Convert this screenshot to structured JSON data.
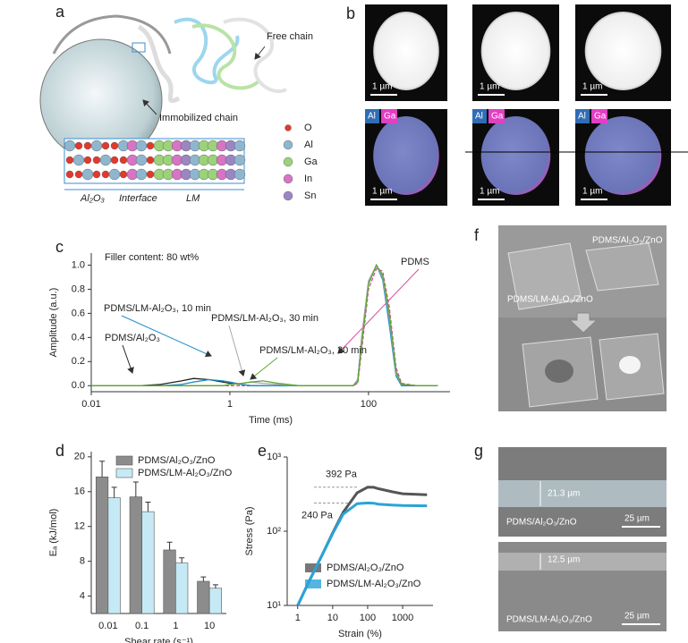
{
  "panel_labels": [
    "a",
    "b",
    "c",
    "d",
    "e",
    "f",
    "g"
  ],
  "panel_a": {
    "free_chain": "Free chain",
    "immobilized_chain": "Immobilized chain",
    "elements": [
      "O",
      "Al",
      "Ga",
      "In",
      "Sn"
    ],
    "regions": [
      "Al₂O₃",
      "Interface",
      "LM"
    ]
  },
  "panel_b": {
    "scale_bar": "1 µm",
    "tags": [
      "Al",
      "Ga"
    ]
  },
  "panel_f": {
    "labels": [
      "PDMS/Al₂O₃/ZnO",
      "PDMS/LM-Al₂O₃/ZnO"
    ]
  },
  "panel_g": {
    "thicknesses": [
      "21.3 µm",
      "12.5 µm"
    ],
    "samples": [
      "PDMS/Al₂O₃/ZnO",
      "PDMS/LM-Al₂O₃/ZnO"
    ],
    "scale_bar": "25 µm"
  },
  "chart_data": [
    {
      "type": "line",
      "annotation": "Filler content: 80 wt%",
      "xlabel": "Time (ms)",
      "ylabel": "Amplitude (a.u.)",
      "xscale": "log",
      "xlim": [
        0.01,
        1500
      ],
      "ylim": [
        -0.05,
        1.1
      ],
      "xticks": [
        0.01,
        1,
        100
      ],
      "yticks": [
        {
          "value": 0,
          "label": "0.0"
        },
        {
          "value": 0.2,
          "label": "0.2"
        },
        {
          "value": 0.4,
          "label": "0.4"
        },
        {
          "value": 0.6,
          "label": "0.6"
        },
        {
          "value": 0.8,
          "label": "0.8"
        },
        {
          "value": 1,
          "label": "1.0"
        }
      ],
      "x": [
        0.01,
        0.05,
        0.1,
        0.2,
        0.3,
        0.5,
        0.8,
        1,
        1.5,
        2,
        3,
        5,
        10,
        30,
        60,
        70,
        80,
        100,
        130,
        160,
        200,
        250,
        300,
        500,
        1000
      ],
      "series": [
        {
          "name": "PDMS",
          "color": "#d4509e",
          "linestyle": "dashed",
          "values": [
            0,
            0,
            0,
            0,
            0,
            0,
            0,
            0,
            0,
            0,
            0,
            0,
            0,
            0,
            0,
            0.02,
            0.3,
            0.8,
            0.97,
            0.95,
            0.65,
            0.15,
            0.02,
            0,
            0
          ]
        },
        {
          "name": "PDMS/Al₂O₃",
          "color": "#222222",
          "values": [
            0,
            0,
            0.01,
            0.04,
            0.06,
            0.05,
            0.03,
            0.02,
            0.01,
            0,
            0,
            0,
            0,
            0,
            0,
            0.05,
            0.4,
            0.85,
            1.0,
            0.9,
            0.55,
            0.1,
            0.01,
            0,
            0
          ]
        },
        {
          "name": "PDMS/LM-Al₂O₃, 10 min",
          "color": "#1f8fc8",
          "values": [
            0,
            0,
            0,
            0.01,
            0.03,
            0.05,
            0.04,
            0.03,
            0.01,
            0,
            0,
            0,
            0,
            0,
            0,
            0.04,
            0.38,
            0.86,
            1.0,
            0.88,
            0.5,
            0.08,
            0,
            0,
            0
          ]
        },
        {
          "name": "PDMS/LM-Al₂O₃, 30 min",
          "color": "#a8a8a8",
          "values": [
            0,
            0,
            0,
            0,
            0,
            0,
            0,
            0.01,
            0.02,
            0.03,
            0.02,
            0.01,
            0,
            0,
            0,
            0.05,
            0.42,
            0.87,
            1.0,
            0.9,
            0.56,
            0.1,
            0.01,
            0,
            0
          ]
        },
        {
          "name": "PDMS/LM-Al₂O₃, 20 min",
          "color": "#5aa832",
          "values": [
            0,
            0,
            0,
            0,
            0,
            0,
            0,
            0.01,
            0.02,
            0.03,
            0.04,
            0.02,
            0,
            0,
            0,
            0.03,
            0.35,
            0.84,
            1.0,
            0.92,
            0.6,
            0.12,
            0.01,
            0,
            0
          ]
        }
      ]
    },
    {
      "type": "bar",
      "xlabel": "Shear rate (s⁻¹)",
      "ylabel": "Eₐ (kJ/mol)",
      "categories": [
        "0.01",
        "0.1",
        "1",
        "10"
      ],
      "ylim": [
        2,
        20.6
      ],
      "yticks": [
        4,
        8,
        12,
        16,
        20
      ],
      "legend": "upper right",
      "series": [
        {
          "name": "PDMS/Al₂O₃/ZnO",
          "color": "#8c8c8c",
          "values": [
            17.7,
            15.4,
            9.3,
            5.7
          ],
          "errors": [
            1.8,
            1.7,
            0.9,
            0.5
          ]
        },
        {
          "name": "PDMS/LM-Al₂O₃/ZnO",
          "color": "#c6eaf5",
          "values": [
            15.3,
            13.7,
            7.8,
            4.9
          ],
          "errors": [
            1.2,
            1.1,
            0.6,
            0.4
          ]
        }
      ]
    },
    {
      "type": "line",
      "xlabel": "Strain (%)",
      "ylabel": "Stress (Pa)",
      "xscale": "log",
      "yscale": "log",
      "xlim": [
        0.5,
        7400
      ],
      "ylim": [
        10,
        1000
      ],
      "xticks": [
        1,
        10,
        100,
        1000
      ],
      "yticks": [
        {
          "value": 10,
          "label": "10¹"
        },
        {
          "value": 100,
          "label": "10²"
        },
        {
          "value": 1000,
          "label": "10³"
        }
      ],
      "legend": "lower right",
      "annotations": [
        {
          "text": "392 Pa",
          "value": 392
        },
        {
          "text": "240 Pa",
          "value": 240
        }
      ],
      "x": [
        1,
        2,
        5,
        10,
        20,
        50,
        100,
        150,
        200,
        500,
        1000,
        5000
      ],
      "series": [
        {
          "name": "PDMS/Al₂O₃/ZnO",
          "color": "#555555",
          "values": [
            10,
            20,
            48,
            95,
            180,
            330,
            392,
            390,
            375,
            340,
            320,
            310
          ]
        },
        {
          "name": "PDMS/LM-Al₂O₃/ZnO",
          "color": "#29a3d8",
          "values": [
            10,
            20,
            48,
            93,
            170,
            235,
            240,
            238,
            232,
            225,
            222,
            220
          ]
        }
      ]
    }
  ]
}
